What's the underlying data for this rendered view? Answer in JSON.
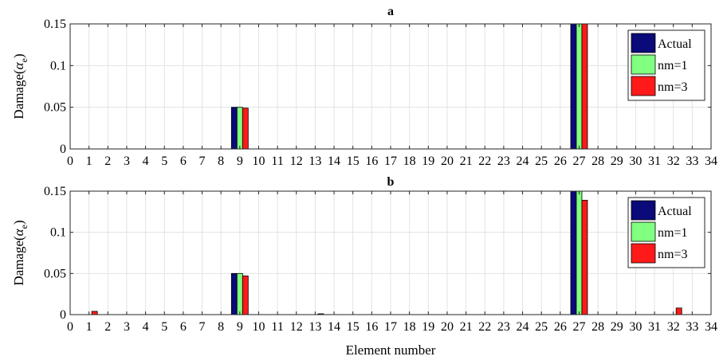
{
  "chart_data": [
    {
      "type": "bar",
      "title": "a",
      "ylabel_text": "Damage(",
      "ylabel_symbol": "α",
      "ylabel_sub": "e",
      "ylabel_close": ")",
      "xlabel": "",
      "xlim": [
        0,
        34
      ],
      "ylim": [
        0,
        0.15
      ],
      "yticks": [
        "0",
        "0.05",
        "0.1",
        "0.15"
      ],
      "xticks": [
        "0",
        "1",
        "2",
        "3",
        "4",
        "5",
        "6",
        "7",
        "8",
        "9",
        "10",
        "11",
        "12",
        "13",
        "14",
        "15",
        "16",
        "17",
        "18",
        "19",
        "20",
        "21",
        "22",
        "23",
        "24",
        "25",
        "26",
        "27",
        "28",
        "29",
        "30",
        "31",
        "32",
        "33",
        "34"
      ],
      "grid": true,
      "legend_position": "top-right",
      "series": [
        {
          "name": "Actual",
          "color": "#0a0a7a",
          "points": [
            {
              "x": 9,
              "y": 0.05
            },
            {
              "x": 27,
              "y": 0.15
            }
          ]
        },
        {
          "name": "nm=1",
          "color": "#80ff80",
          "points": [
            {
              "x": 9,
              "y": 0.05
            },
            {
              "x": 27,
              "y": 0.15
            }
          ]
        },
        {
          "name": "nm=3",
          "color": "#ff1a1a",
          "points": [
            {
              "x": 9,
              "y": 0.049
            },
            {
              "x": 27,
              "y": 0.15
            }
          ]
        }
      ]
    },
    {
      "type": "bar",
      "title": "b",
      "ylabel_text": "Damage(",
      "ylabel_symbol": "α",
      "ylabel_sub": "e",
      "ylabel_close": ")",
      "xlabel": "Element number",
      "xlim": [
        0,
        34
      ],
      "ylim": [
        0,
        0.15
      ],
      "yticks": [
        "0",
        "0.05",
        "0.1",
        "0.15"
      ],
      "xticks": [
        "0",
        "1",
        "2",
        "3",
        "4",
        "5",
        "6",
        "7",
        "8",
        "9",
        "10",
        "11",
        "12",
        "13",
        "14",
        "15",
        "16",
        "17",
        "18",
        "19",
        "20",
        "21",
        "22",
        "23",
        "24",
        "25",
        "26",
        "27",
        "28",
        "29",
        "30",
        "31",
        "32",
        "33",
        "34"
      ],
      "grid": true,
      "legend_position": "top-right",
      "series": [
        {
          "name": "Actual",
          "color": "#0a0a7a",
          "points": [
            {
              "x": 9,
              "y": 0.05
            },
            {
              "x": 27,
              "y": 0.15
            }
          ]
        },
        {
          "name": "nm=1",
          "color": "#80ff80",
          "points": [
            {
              "x": 9,
              "y": 0.05
            },
            {
              "x": 27,
              "y": 0.15
            }
          ]
        },
        {
          "name": "nm=3",
          "color": "#ff1a1a",
          "points": [
            {
              "x": 1,
              "y": 0.004
            },
            {
              "x": 9,
              "y": 0.047
            },
            {
              "x": 13,
              "y": 0.001
            },
            {
              "x": 27,
              "y": 0.139
            },
            {
              "x": 32,
              "y": 0.008
            }
          ]
        }
      ]
    }
  ]
}
